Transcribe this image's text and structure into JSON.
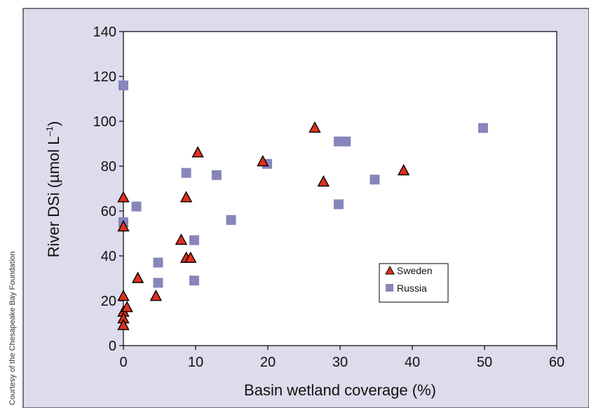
{
  "credit": "Courtesy of the Chesapeake Bay Foundation",
  "colors": {
    "panel_bg": "#dcdcec",
    "plot_bg": "#ffffff",
    "sweden_fill": "#e0301e",
    "russia_fill": "#8686bb"
  },
  "chart_data": {
    "type": "scatter",
    "xlabel": "Basin wetland coverage (%)",
    "ylabel": "River DSi (µmol L",
    "ylabel_sup": "–1",
    "ylabel_close": ")",
    "xlim": [
      0,
      60
    ],
    "ylim": [
      0,
      140
    ],
    "xticks": [
      0,
      10,
      20,
      30,
      40,
      50,
      60
    ],
    "yticks": [
      0,
      20,
      40,
      60,
      80,
      100,
      120,
      140
    ],
    "grid": false,
    "legend_position": "lower-right",
    "series": [
      {
        "name": "Sweden",
        "marker": "triangle",
        "points": [
          [
            0,
            66
          ],
          [
            0,
            53
          ],
          [
            0,
            22
          ],
          [
            0,
            15
          ],
          [
            0,
            12
          ],
          [
            0,
            9
          ],
          [
            0.5,
            17
          ],
          [
            2,
            30
          ],
          [
            4.5,
            22
          ],
          [
            8,
            47
          ],
          [
            8.7,
            66
          ],
          [
            8.7,
            39
          ],
          [
            9.3,
            39
          ],
          [
            10.3,
            86
          ],
          [
            19.3,
            82
          ],
          [
            26.5,
            97
          ],
          [
            27.7,
            73
          ],
          [
            38.8,
            78
          ]
        ]
      },
      {
        "name": "Russia",
        "marker": "square",
        "points": [
          [
            0,
            116
          ],
          [
            0,
            55
          ],
          [
            1.8,
            62
          ],
          [
            4.8,
            37
          ],
          [
            4.8,
            28
          ],
          [
            8.7,
            77
          ],
          [
            9.8,
            47
          ],
          [
            9.8,
            29
          ],
          [
            12.9,
            76
          ],
          [
            14.9,
            56
          ],
          [
            19.9,
            81
          ],
          [
            29.8,
            91
          ],
          [
            29.8,
            63
          ],
          [
            30.8,
            91
          ],
          [
            34.8,
            74
          ],
          [
            49.8,
            97
          ]
        ]
      }
    ]
  }
}
